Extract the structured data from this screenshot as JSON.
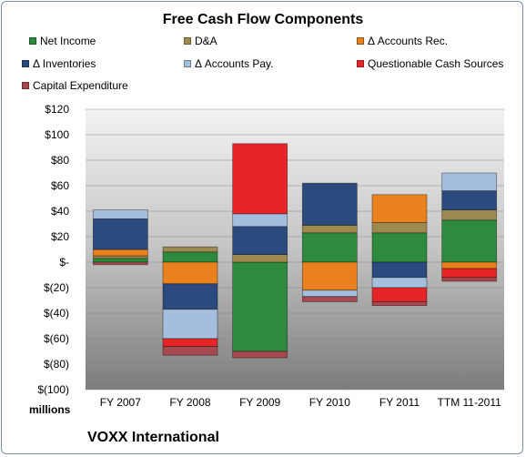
{
  "chart_data": {
    "type": "bar",
    "stacked": true,
    "title": "Free Cash Flow Components",
    "unit_label": "millions",
    "company": "VOXX International",
    "categories": [
      "FY 2007",
      "FY 2008",
      "FY 2009",
      "FY 2010",
      "FY 2011",
      "TTM 11-2011"
    ],
    "ylim": [
      -100,
      120
    ],
    "yticks": [
      120,
      100,
      80,
      60,
      40,
      20,
      0,
      -20,
      -40,
      -60,
      -80,
      -100
    ],
    "ytick_labels": [
      "$120",
      "$100",
      "$80",
      "$60",
      "$40",
      "$20",
      "$-",
      "$(20)",
      "$(40)",
      "$(60)",
      "$(80)",
      "$(100)"
    ],
    "series": [
      {
        "name": "Net Income",
        "color": "#2e8b3e",
        "values": [
          3,
          8,
          -70,
          23,
          23,
          33
        ]
      },
      {
        "name": "D&A",
        "color": "#9c8a50",
        "values": [
          2,
          4,
          6,
          6,
          8,
          8
        ]
      },
      {
        "name": "Δ Accounts Rec.",
        "color": "#e9821e",
        "values": [
          5,
          -17,
          0,
          -22,
          22,
          -5
        ]
      },
      {
        "name": "Δ Inventories",
        "color": "#2b4a7e",
        "values": [
          24,
          -20,
          22,
          33,
          -12,
          15
        ]
      },
      {
        "name": "Δ Accounts Pay.",
        "color": "#a4bfde",
        "values": [
          7,
          -23,
          10,
          -5,
          -8,
          14
        ]
      },
      {
        "name": "Questionable Cash Sources",
        "color": "#e52528",
        "values": [
          0,
          -6,
          55,
          0,
          -11,
          -7
        ]
      },
      {
        "name": "Capital Expenditure",
        "color": "#a8484f",
        "values": [
          -2,
          -7,
          -5,
          -4,
          -3,
          -3
        ]
      }
    ]
  }
}
